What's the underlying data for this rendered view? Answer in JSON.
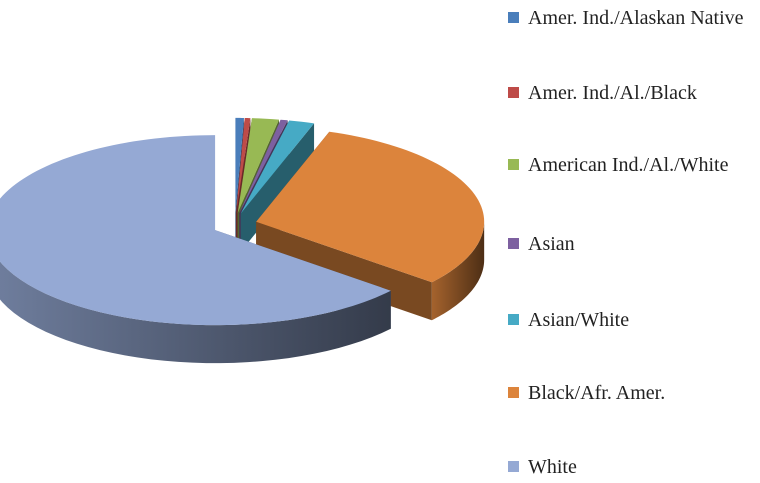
{
  "chart_data": {
    "type": "pie3d",
    "categories": [
      "Amer. Ind./Alaskan Native",
      "Amer. Ind./Al./Black",
      "American Ind./Al./White",
      "Asian",
      "Asian/White",
      "Black/Afr. Amer.",
      "White"
    ],
    "values": [
      0.6,
      0.4,
      1.9,
      0.5,
      1.8,
      30.8,
      64
    ],
    "colors": [
      "#4a7ebb",
      "#be4b48",
      "#98b954",
      "#7d60a0",
      "#46aac5",
      "#dc843c",
      "#95a9d4"
    ]
  }
}
